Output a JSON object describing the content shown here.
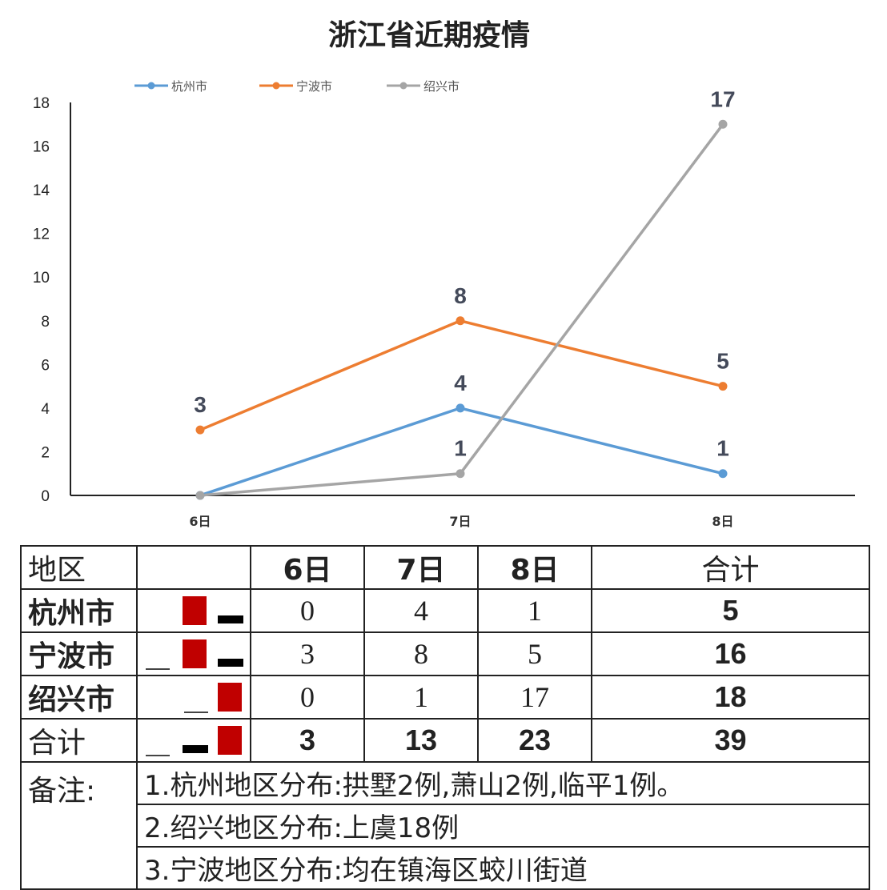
{
  "chart_data": {
    "type": "line",
    "title": "浙江省近期疫情",
    "categories": [
      "6日",
      "7日",
      "8日"
    ],
    "ylim": [
      0,
      18
    ],
    "yticks": [
      0,
      2,
      4,
      6,
      8,
      10,
      12,
      14,
      16,
      18
    ],
    "grid": false,
    "legend_position": "top",
    "series": [
      {
        "name": "杭州市",
        "values": [
          0,
          4,
          1
        ],
        "color": "#5b9bd5",
        "labels": [
          "",
          "4",
          "1"
        ]
      },
      {
        "name": "宁波市",
        "values": [
          3,
          8,
          5
        ],
        "color": "#ed7d31",
        "labels": [
          "3",
          "8",
          "5"
        ]
      },
      {
        "name": "绍兴市",
        "values": [
          0,
          1,
          17
        ],
        "color": "#a5a5a5",
        "labels": [
          "",
          "1",
          "17"
        ]
      }
    ]
  },
  "table": {
    "header": {
      "region": "地区",
      "d6": "6日",
      "d7": "7日",
      "d8": "8日",
      "total": "合计"
    },
    "rows": [
      {
        "region": "杭州市",
        "d6": "0",
        "d7": "4",
        "d8": "1",
        "total": "5"
      },
      {
        "region": "宁波市",
        "d6": "3",
        "d7": "8",
        "d8": "5",
        "total": "16"
      },
      {
        "region": "绍兴市",
        "d6": "0",
        "d7": "1",
        "d8": "17",
        "total": "18"
      }
    ],
    "sum": {
      "region": "合计",
      "d6": "3",
      "d7": "13",
      "d8": "23",
      "total": "39"
    },
    "notes_label": "备注:",
    "notes": [
      "1.杭州地区分布:拱墅2例,萧山2例,临平1例。",
      "2.绍兴地区分布:上虞18例",
      "3.宁波地区分布:均在镇海区蛟川街道"
    ]
  },
  "colors": {
    "red_marker": "#c00000",
    "black_marker": "#000000"
  }
}
